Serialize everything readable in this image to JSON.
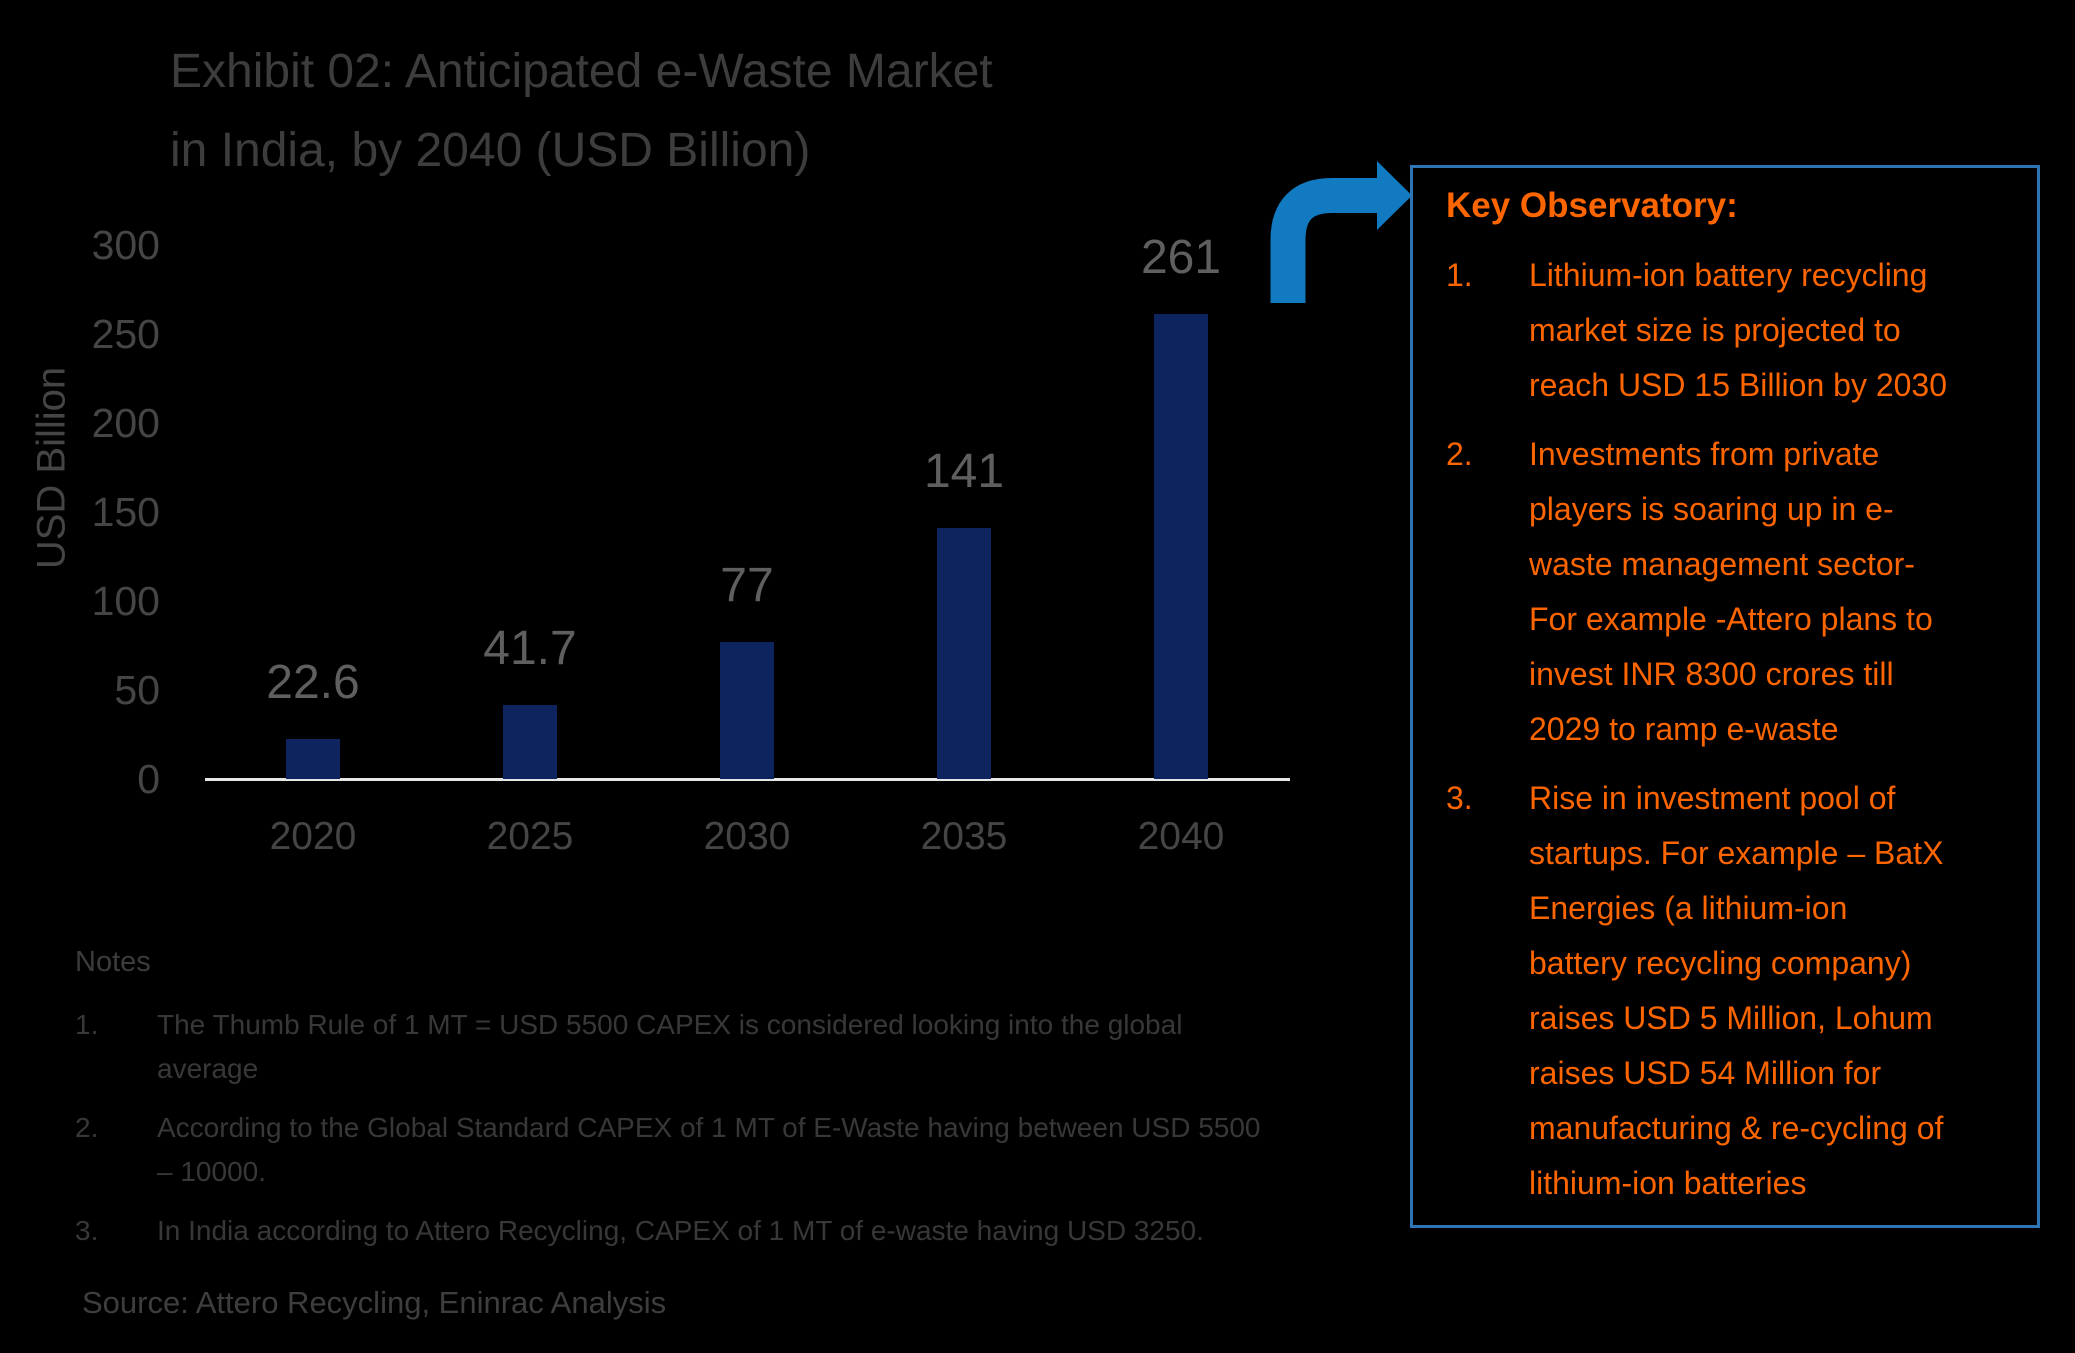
{
  "title": {
    "line1": "Exhibit 02: Anticipated e-Waste Market",
    "line2": "in India, by 2040 (USD Billion)"
  },
  "chart_data": {
    "type": "bar",
    "title": "Exhibit 02: Anticipated e-Waste Market in India, by 2040 (USD Billion)",
    "categories": [
      "2020",
      "2025",
      "2030",
      "2035",
      "2040"
    ],
    "values": [
      22.6,
      41.7,
      77,
      141,
      261
    ],
    "value_labels": [
      "22.6",
      "41.7",
      "77",
      "141",
      "261"
    ],
    "xlabel": "",
    "ylabel": "USD Billion",
    "ylim": [
      0,
      300
    ],
    "yticks": [
      300,
      250,
      200,
      150,
      100,
      50,
      0
    ],
    "grid": false,
    "legend": false,
    "bar_color": "#0D245F"
  },
  "key_observatory": {
    "title": "Key Observatory:",
    "items": [
      {
        "num": "1.",
        "text": "Lithium-ion battery recycling\nmarket size is projected to\nreach USD 15 Billion by 2030"
      },
      {
        "num": "2.",
        "text": "Investments from private\nplayers is soaring up in e-\nwaste management sector-\nFor example -Attero plans to\ninvest INR 8300 crores till\n2029 to ramp e-waste"
      },
      {
        "num": "3.",
        "text": "Rise in investment pool of\nstartups. For example – BatX\nEnergies (a lithium-ion\nbattery recycling company)\nraises USD 5 Million, Lohum\nraises USD 54 Million for\nmanufacturing & re-cycling of\nlithium-ion batteries"
      }
    ]
  },
  "notes": {
    "title": "Notes",
    "items": [
      {
        "num": "1.",
        "text": "The Thumb Rule of 1 MT = USD 5500 CAPEX is considered looking into the global\naverage"
      },
      {
        "num": "2.",
        "text": "According to the Global Standard CAPEX of 1 MT of E-Waste having between USD 5500\n– 10000."
      },
      {
        "num": "3.",
        "text": "In India according to Attero Recycling, CAPEX of 1 MT of e-waste having USD 3250."
      }
    ]
  },
  "source": "Source: Attero Recycling, Eninrac Analysis",
  "colors": {
    "background": "#000000",
    "bar": "#0D245F",
    "axis_line": "#E6E6E6",
    "title_text": "#3D3D3D",
    "axis_text": "#454545",
    "value_label_text": "#5F5F5F",
    "notes_text": "#383838",
    "source_text": "#3E3E3E",
    "orange_text": "#FC6500",
    "box_border": "#2E75B6",
    "arrow_blue": "#127AC1"
  }
}
